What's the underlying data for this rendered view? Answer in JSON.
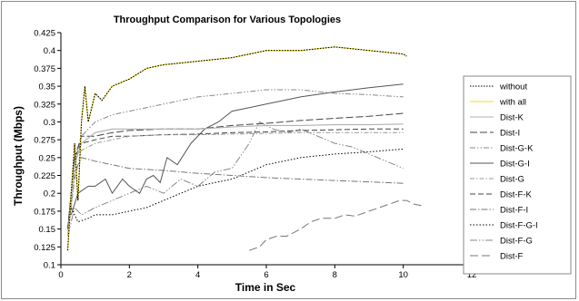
{
  "chart_data": {
    "type": "line",
    "title": "Throughput Comparison for Various Topologies",
    "xlabel": "Time in Sec",
    "ylabel": "Throughput (Mbps)",
    "xlim": [
      0,
      12
    ],
    "ylim": [
      0.1,
      0.425
    ],
    "xticks": [
      "0",
      "2",
      "4",
      "6",
      "8",
      "10",
      "12"
    ],
    "yticks": [
      "0.1",
      "0.125",
      "0.15",
      "0.175",
      "0.2",
      "0.225",
      "0.25",
      "0.275",
      "0.3",
      "0.325",
      "0.35",
      "0.375",
      "0.4",
      "0.425"
    ],
    "grid": false,
    "legend_position": "right",
    "series": [
      {
        "name": "without",
        "color": "#000000",
        "dash": "1.5,1.5",
        "width": 1.1,
        "x": [
          0.2,
          0.3,
          0.4,
          0.5,
          0.6,
          0.7,
          0.8,
          1.0,
          1.2,
          1.5,
          2.0,
          2.5,
          3.0,
          4.0,
          5.0,
          6.0,
          7.0,
          8.0,
          9.0,
          10.0,
          10.1
        ],
        "y": [
          0.12,
          0.2,
          0.27,
          0.19,
          0.3,
          0.35,
          0.3,
          0.34,
          0.33,
          0.35,
          0.36,
          0.375,
          0.38,
          0.385,
          0.39,
          0.4,
          0.4,
          0.405,
          0.4,
          0.395,
          0.392
        ]
      },
      {
        "name": "with all",
        "color": "#f2dc1a",
        "dash": "",
        "width": 1.1,
        "x": [
          0.2,
          0.3,
          0.4,
          0.5,
          0.6,
          0.7,
          0.8,
          1.0,
          1.2,
          1.5,
          2.0,
          2.5,
          3.0,
          4.0,
          5.0,
          6.0,
          7.0,
          8.0,
          9.0,
          10.0,
          10.1
        ],
        "y": [
          0.12,
          0.2,
          0.27,
          0.19,
          0.3,
          0.35,
          0.3,
          0.34,
          0.33,
          0.35,
          0.36,
          0.375,
          0.38,
          0.385,
          0.39,
          0.4,
          0.4,
          0.405,
          0.4,
          0.395,
          0.392
        ]
      },
      {
        "name": "Dist-K",
        "color": "#b0b0b0",
        "dash": "",
        "width": 1.1,
        "x": [
          0.2,
          0.4,
          0.6,
          1.0,
          1.5,
          2.0,
          3.0,
          4.0,
          5.0,
          6.0,
          7.0,
          8.0,
          9.0,
          10.0
        ],
        "y": [
          0.14,
          0.24,
          0.27,
          0.285,
          0.29,
          0.29,
          0.29,
          0.29,
          0.293,
          0.295,
          0.295,
          0.296,
          0.296,
          0.297
        ]
      },
      {
        "name": "Dist-I",
        "color": "#444444",
        "dash": "8,3",
        "width": 1,
        "x": [
          0.2,
          0.4,
          0.6,
          1.0,
          1.5,
          2.0,
          3.0,
          4.0,
          5.0,
          6.0,
          7.0,
          8.0,
          9.0,
          10.0
        ],
        "y": [
          0.15,
          0.25,
          0.28,
          0.28,
          0.285,
          0.288,
          0.29,
          0.29,
          0.295,
          0.298,
          0.302,
          0.305,
          0.308,
          0.312
        ]
      },
      {
        "name": "Dist-G-K",
        "color": "#888888",
        "dash": "6,2,1.5,2,1.5,2",
        "width": 1,
        "x": [
          0.2,
          0.4,
          0.6,
          1.0,
          1.5,
          2.0,
          2.5,
          3.0,
          4.0,
          5.0,
          6.0,
          7.0,
          8.0,
          9.0,
          10.0
        ],
        "y": [
          0.15,
          0.24,
          0.28,
          0.3,
          0.31,
          0.315,
          0.32,
          0.325,
          0.335,
          0.34,
          0.345,
          0.345,
          0.34,
          0.338,
          0.335
        ]
      },
      {
        "name": "Dist-G-I",
        "color": "#555555",
        "dash": "",
        "width": 1,
        "x": [
          0.3,
          0.5,
          0.8,
          1.0,
          1.3,
          1.5,
          1.8,
          2.0,
          2.3,
          2.5,
          2.7,
          2.9,
          3.1,
          3.4,
          3.8,
          4.2,
          4.6,
          5.0,
          5.5,
          6.0,
          7.0,
          8.0,
          9.0,
          10.0
        ],
        "y": [
          0.17,
          0.2,
          0.21,
          0.21,
          0.22,
          0.2,
          0.22,
          0.21,
          0.2,
          0.22,
          0.225,
          0.215,
          0.25,
          0.24,
          0.27,
          0.29,
          0.3,
          0.315,
          0.32,
          0.325,
          0.335,
          0.342,
          0.348,
          0.353
        ]
      },
      {
        "name": "Dist-G",
        "color": "#999999",
        "dash": "5,2,1.5,2",
        "width": 1,
        "x": [
          0.2,
          0.4,
          0.6,
          1.0,
          1.5,
          2.0,
          3.0,
          4.0,
          5.0,
          6.0,
          7.0,
          8.0,
          9.0,
          10.0
        ],
        "y": [
          0.14,
          0.22,
          0.26,
          0.27,
          0.275,
          0.28,
          0.282,
          0.282,
          0.283,
          0.284,
          0.285,
          0.285,
          0.285,
          0.285
        ]
      },
      {
        "name": "Dist-F-K",
        "color": "#444444",
        "dash": "6,3",
        "width": 1,
        "x": [
          0.2,
          0.4,
          0.6,
          1.0,
          1.5,
          2.0,
          3.0,
          4.0,
          5.0,
          6.0,
          7.0,
          8.0,
          9.0,
          10.0
        ],
        "y": [
          0.15,
          0.25,
          0.27,
          0.275,
          0.28,
          0.28,
          0.282,
          0.283,
          0.285,
          0.286,
          0.288,
          0.289,
          0.29,
          0.29
        ]
      },
      {
        "name": "Dist-F-I",
        "color": "#777777",
        "dash": "7,2,1.5,2",
        "width": 1,
        "x": [
          0.2,
          0.4,
          0.6,
          1.0,
          1.5,
          2.0,
          3.0,
          4.0,
          5.0,
          6.0,
          7.0,
          8.0,
          9.0,
          10.0
        ],
        "y": [
          0.14,
          0.23,
          0.25,
          0.245,
          0.24,
          0.235,
          0.232,
          0.228,
          0.225,
          0.222,
          0.22,
          0.218,
          0.216,
          0.214
        ]
      },
      {
        "name": "Dist-F-G-I",
        "color": "#000000",
        "dash": "1.5,2",
        "width": 1,
        "x": [
          0.2,
          0.3,
          0.5,
          0.8,
          1.0,
          1.5,
          2.0,
          2.5,
          3.0,
          3.5,
          4.0,
          4.5,
          5.0,
          5.5,
          6.0,
          6.5,
          7.0,
          8.0,
          9.0,
          10.0
        ],
        "y": [
          0.15,
          0.18,
          0.16,
          0.165,
          0.17,
          0.17,
          0.175,
          0.18,
          0.19,
          0.2,
          0.21,
          0.215,
          0.22,
          0.23,
          0.24,
          0.245,
          0.25,
          0.255,
          0.258,
          0.262
        ]
      },
      {
        "name": "Dist-F-G",
        "color": "#888888",
        "dash": "8,2,1.5,2,1.5,2",
        "width": 1,
        "x": [
          0.2,
          0.4,
          0.6,
          1.0,
          1.5,
          2.0,
          2.5,
          3.0,
          3.5,
          4.0,
          4.5,
          5.0,
          5.5,
          5.8,
          6.2,
          6.6,
          7.0,
          7.5,
          8.0,
          8.5,
          9.0,
          9.5,
          10.0
        ],
        "y": [
          0.14,
          0.18,
          0.17,
          0.18,
          0.19,
          0.2,
          0.21,
          0.2,
          0.22,
          0.21,
          0.23,
          0.235,
          0.27,
          0.3,
          0.29,
          0.285,
          0.29,
          0.28,
          0.27,
          0.265,
          0.255,
          0.245,
          0.235
        ]
      },
      {
        "name": "Dist-F",
        "color": "#777777",
        "dash": "9,4",
        "width": 1,
        "x": [
          5.5,
          5.8,
          6.0,
          6.3,
          6.6,
          7.0,
          7.3,
          7.6,
          8.0,
          8.3,
          8.6,
          9.0,
          9.3,
          9.6,
          9.9,
          10.1,
          10.3,
          10.5,
          10.6
        ],
        "y": [
          0.12,
          0.125,
          0.135,
          0.14,
          0.14,
          0.15,
          0.16,
          0.165,
          0.165,
          0.17,
          0.168,
          0.175,
          0.18,
          0.185,
          0.19,
          0.19,
          0.185,
          0.183,
          0.182
        ]
      }
    ]
  }
}
